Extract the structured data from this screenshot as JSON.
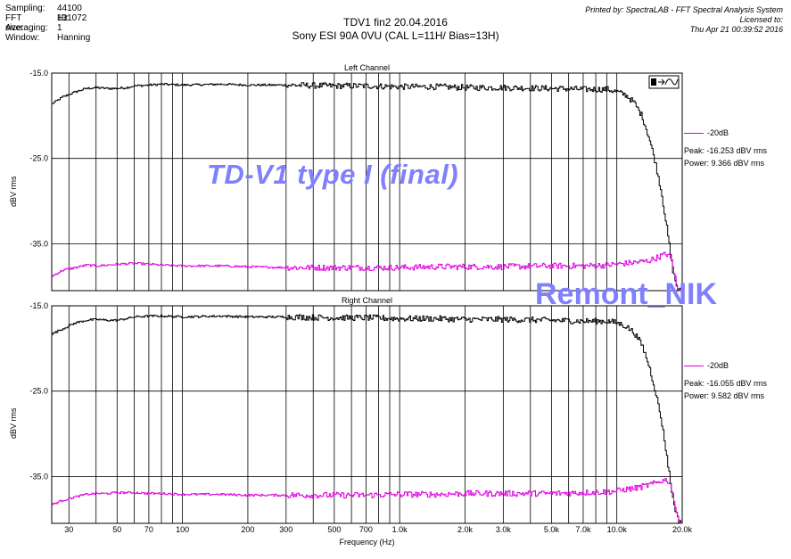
{
  "header": {
    "rows": [
      {
        "key": "Sampling:",
        "value": "44100 Hz"
      },
      {
        "key": "FFT size:",
        "value": "131072"
      },
      {
        "key": "Averaging:",
        "value": "1"
      },
      {
        "key": "Window:",
        "value": "Hanning"
      }
    ],
    "title_line1": "TDV1 fin2 20.04.2016",
    "title_line2": "Sony ESI 90A  0VU  (CAL L=11H/ Bias=13H)",
    "printed_by": "Printed by: SpectraLAB - FFT Spectral Analysis System",
    "licensed_to": "Licensed to:",
    "print_date": "Thu Apr 21 00:39:52 2016"
  },
  "watermarks": {
    "primary": "TD-V1 type I (final)",
    "secondary": "Remont_NIK"
  },
  "colors": {
    "main_trace": "#000000",
    "ref_trace": "#e000e0",
    "watermark": "#8080ff",
    "grid": "#000000"
  },
  "icons": {
    "trace_toggle": "waveform-icon"
  },
  "chart_data": [
    {
      "type": "line",
      "title": "Left Channel",
      "xlabel": "Frequency (Hz)",
      "ylabel": "dBV rms",
      "xscale": "log",
      "xlim": [
        25,
        20000
      ],
      "ylim": [
        -40.5,
        -15.0
      ],
      "yticks": [
        -15.0,
        -25.0,
        -35.0
      ],
      "ytick_labels": [
        "-15.0",
        "-25.0",
        "-35.0"
      ],
      "xticks": [
        30,
        50,
        70,
        100,
        200,
        300,
        500,
        700,
        1000,
        2000,
        3000,
        5000,
        7000,
        10000,
        20000
      ],
      "xtick_labels": [
        "30",
        "50",
        "70",
        "100",
        "200",
        "300",
        "500",
        "700",
        "1.0k",
        "2.0k",
        "3.0k",
        "5.0k",
        "7.0k",
        "10.0k",
        "20.0k"
      ],
      "grid": true,
      "legend_position": "right",
      "legend_label": "-20dB",
      "peak_text": "Peak: -16.253 dBV rms",
      "power_text": "Power: 9.366 dBV rms",
      "series": [
        {
          "x": [
            25,
            28,
            32,
            36,
            40,
            45,
            50,
            55,
            60,
            70,
            80,
            100,
            150,
            200,
            300,
            500,
            700,
            1000,
            1500,
            2000,
            3000,
            5000,
            7000,
            9000,
            10000,
            11000,
            12000,
            13000,
            14000,
            15000,
            16000,
            17000,
            18000,
            19000,
            20000
          ],
          "y": [
            -18.6,
            -17.8,
            -17.2,
            -16.8,
            -16.7,
            -16.8,
            -16.8,
            -16.7,
            -16.5,
            -16.4,
            -16.3,
            -16.4,
            -16.3,
            -16.4,
            -16.4,
            -16.5,
            -16.5,
            -16.6,
            -16.6,
            -16.7,
            -16.7,
            -16.8,
            -16.9,
            -16.9,
            -17.2,
            -17.6,
            -18.5,
            -20.0,
            -22.5,
            -25.5,
            -29.0,
            -33.5,
            -38.0,
            -40.5,
            -40.5
          ]
        },
        {
          "x": [
            25,
            28,
            32,
            36,
            40,
            45,
            50,
            60,
            70,
            80,
            100,
            150,
            200,
            300,
            500,
            700,
            1000,
            1500,
            2000,
            3000,
            5000,
            7000,
            9000,
            10000,
            11000,
            12000,
            13000,
            14000,
            15000,
            16000,
            17000,
            17500,
            18000,
            18500,
            19000,
            20000
          ],
          "y": [
            -38.8,
            -38.1,
            -37.8,
            -37.5,
            -37.6,
            -37.5,
            -37.4,
            -37.3,
            -37.4,
            -37.5,
            -37.6,
            -37.6,
            -37.7,
            -37.8,
            -37.8,
            -37.8,
            -37.8,
            -37.7,
            -37.7,
            -37.7,
            -37.6,
            -37.6,
            -37.5,
            -37.4,
            -37.3,
            -37.2,
            -37.1,
            -37.0,
            -36.7,
            -36.4,
            -36.2,
            -36.6,
            -37.5,
            -39.0,
            -40.5,
            -40.5
          ]
        }
      ]
    },
    {
      "type": "line",
      "title": "Right Channel",
      "xlabel": "Frequency (Hz)",
      "ylabel": "dBV rms",
      "xscale": "log",
      "xlim": [
        25,
        20000
      ],
      "ylim": [
        -40.5,
        -15.0
      ],
      "yticks": [
        -15.0,
        -25.0,
        -35.0
      ],
      "ytick_labels": [
        "-15.0",
        "-25.0",
        "-35.0"
      ],
      "xticks": [
        30,
        50,
        70,
        100,
        200,
        300,
        500,
        700,
        1000,
        2000,
        3000,
        5000,
        7000,
        10000,
        20000
      ],
      "xtick_labels": [
        "30",
        "50",
        "70",
        "100",
        "200",
        "300",
        "500",
        "700",
        "1.0k",
        "2.0k",
        "3.0k",
        "5.0k",
        "7.0k",
        "10.0k",
        "20.0k"
      ],
      "grid": true,
      "legend_position": "right",
      "legend_label": "-20dB",
      "peak_text": "Peak: -16.055 dBV rms",
      "power_text": "Power: 9.582 dBV rms",
      "series": [
        {
          "x": [
            25,
            28,
            32,
            36,
            40,
            45,
            50,
            55,
            60,
            70,
            80,
            100,
            150,
            200,
            300,
            500,
            700,
            1000,
            1500,
            2000,
            3000,
            5000,
            7000,
            9000,
            10000,
            11000,
            12000,
            13000,
            14000,
            15000,
            16000,
            17000,
            18000,
            19000,
            20000
          ],
          "y": [
            -18.3,
            -17.7,
            -17.0,
            -16.7,
            -16.6,
            -16.7,
            -16.7,
            -16.5,
            -16.3,
            -16.2,
            -16.2,
            -16.3,
            -16.2,
            -16.3,
            -16.3,
            -16.4,
            -16.4,
            -16.5,
            -16.5,
            -16.6,
            -16.6,
            -16.7,
            -16.8,
            -16.8,
            -17.0,
            -17.4,
            -18.2,
            -19.6,
            -22.0,
            -25.0,
            -28.5,
            -33.0,
            -37.5,
            -40.0,
            -40.5
          ]
        },
        {
          "x": [
            25,
            28,
            32,
            36,
            40,
            45,
            50,
            60,
            70,
            80,
            100,
            150,
            200,
            300,
            500,
            700,
            1000,
            1500,
            2000,
            3000,
            5000,
            7000,
            9000,
            10000,
            11000,
            12000,
            13000,
            14000,
            15000,
            16000,
            17000,
            17500,
            18000,
            18500,
            19000,
            20000
          ],
          "y": [
            -38.3,
            -37.8,
            -37.4,
            -37.1,
            -37.0,
            -37.0,
            -36.9,
            -36.9,
            -37.0,
            -37.0,
            -37.1,
            -37.1,
            -37.2,
            -37.2,
            -37.2,
            -37.2,
            -37.1,
            -37.1,
            -37.0,
            -37.0,
            -37.0,
            -36.9,
            -36.8,
            -36.7,
            -36.5,
            -36.4,
            -36.2,
            -36.0,
            -35.8,
            -35.5,
            -35.4,
            -35.9,
            -36.8,
            -38.5,
            -40.0,
            -40.5
          ]
        }
      ]
    }
  ]
}
